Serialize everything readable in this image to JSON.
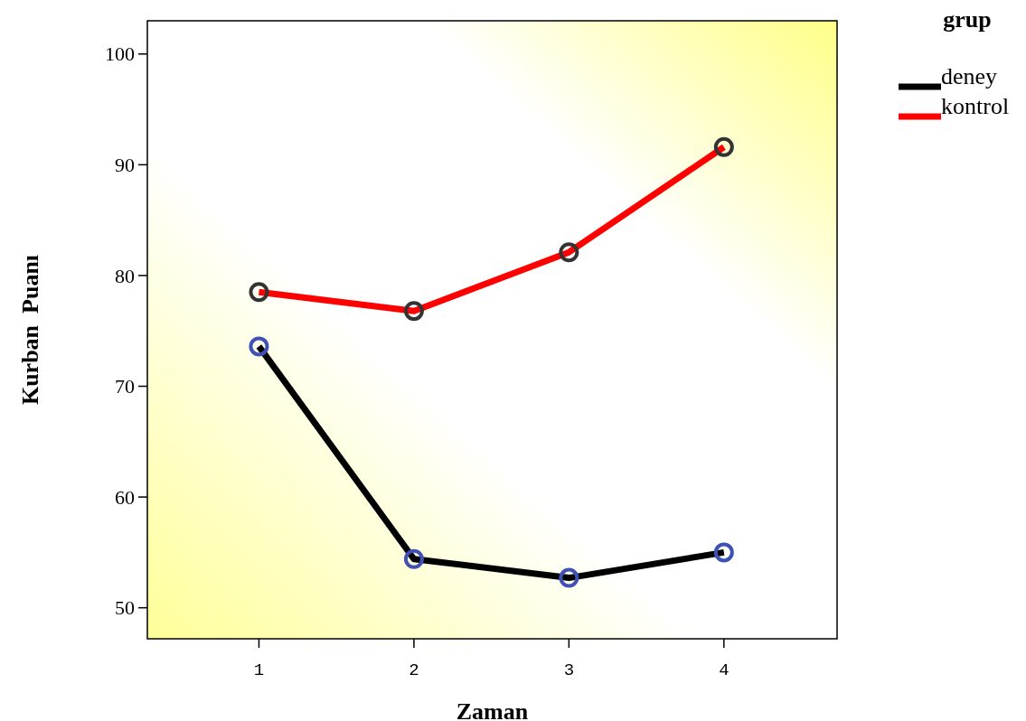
{
  "chart_data": {
    "type": "line",
    "xlabel": "Zaman",
    "ylabel": "Kurban  Puanı",
    "legend_title": "grup",
    "x": [
      1,
      2,
      3,
      4
    ],
    "xlim": [
      0.28,
      4.73
    ],
    "xticks": [
      1,
      2,
      3,
      4
    ],
    "ylim": [
      47.2,
      103
    ],
    "yticks": [
      50,
      60,
      70,
      80,
      90,
      100
    ],
    "series": [
      {
        "name": "deney",
        "color": "#000000",
        "values": [
          73.6,
          54.4,
          52.7,
          55.0
        ]
      },
      {
        "name": "kontrol",
        "color": "#ff0000",
        "values": [
          78.5,
          76.8,
          82.1,
          91.6
        ]
      }
    ],
    "marker": "circle",
    "legend": "top right",
    "grid": false
  }
}
